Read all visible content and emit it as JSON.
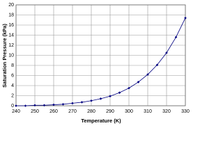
{
  "chart_data": {
    "type": "line",
    "x_label": "Temperature (K)",
    "y_label": "Saturation Pressure (kPa)",
    "xlim": [
      240,
      330
    ],
    "xticks": [
      240,
      250,
      260,
      270,
      280,
      290,
      300,
      310,
      320,
      330
    ],
    "ylim": [
      0,
      20
    ],
    "yticks": [
      0,
      2,
      4,
      6,
      8,
      10,
      12,
      14,
      16,
      18,
      20
    ],
    "grid": true,
    "series": [
      {
        "color": "#000080",
        "x": [
          240,
          245,
          250,
          255,
          260,
          265,
          270,
          275,
          280,
          285,
          290,
          295,
          300,
          305,
          310,
          315,
          320,
          325,
          330
        ],
        "values": [
          0.0,
          0.0,
          0.1,
          0.1,
          0.2,
          0.3,
          0.5,
          0.7,
          1.0,
          1.4,
          1.9,
          2.6,
          3.5,
          4.7,
          6.2,
          8.1,
          10.5,
          13.6,
          17.4
        ]
      }
    ]
  }
}
